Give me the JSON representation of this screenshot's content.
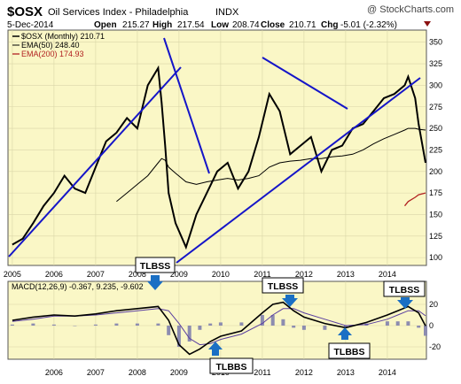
{
  "header": {
    "symbol": "$OSX",
    "name": "Oil Services Index - Philadelphia",
    "exchange": "INDX",
    "watermark": "@ StockCharts.com",
    "date": "5-Dec-2014",
    "open_label": "Open",
    "open": "215.27",
    "high_label": "High",
    "high": "217.54",
    "low_label": "Low",
    "low": "208.74",
    "close_label": "Close",
    "close": "210.71",
    "chg_label": "Chg",
    "chg": "-5.01 (-2.32%)"
  },
  "colors": {
    "panel_bg": "#faf7c6",
    "price": "#000000",
    "ema50": "#000000",
    "ema200": "#b22222",
    "trendline": "#1515c8",
    "macd": "#000000",
    "signal": "#5a3fa0",
    "histogram": "#8c8cb0",
    "callout_arrow": "#1a6fc4",
    "grid": "#d9d6a8"
  },
  "legend": {
    "price": "$OSX (Monthly) 210.71",
    "ema50": "EMA(50) 248.40",
    "ema200": "EMA(200) 174.93"
  },
  "macd_label": "MACD(12,26,9) -0.367, 9.235, -9.602",
  "callouts": [
    "TLBSS",
    "TLBBS",
    "TLBSS",
    "TLBBS",
    "TLBSS"
  ],
  "chart_data": [
    {
      "type": "line",
      "title": "$OSX Oil Services Index - Philadelphia (Monthly)",
      "x_axis_labels": [
        "2005",
        "2006",
        "2007",
        "2008",
        "2009",
        "2010",
        "2011",
        "2012",
        "2013",
        "2014"
      ],
      "y_ticks": [
        100,
        125,
        150,
        175,
        200,
        225,
        250,
        275,
        300,
        325,
        350
      ],
      "ylim": [
        95,
        360
      ],
      "x": [
        "2005-01",
        "2005-04",
        "2005-07",
        "2005-10",
        "2006-01",
        "2006-04",
        "2006-07",
        "2006-10",
        "2007-01",
        "2007-04",
        "2007-07",
        "2007-10",
        "2008-01",
        "2008-04",
        "2008-07",
        "2008-08",
        "2008-09",
        "2008-10",
        "2008-12",
        "2009-03",
        "2009-06",
        "2009-09",
        "2009-12",
        "2010-03",
        "2010-06",
        "2010-09",
        "2010-12",
        "2011-03",
        "2011-06",
        "2011-09",
        "2011-12",
        "2012-03",
        "2012-06",
        "2012-09",
        "2012-12",
        "2013-03",
        "2013-06",
        "2013-09",
        "2013-12",
        "2014-03",
        "2014-06",
        "2014-07",
        "2014-09",
        "2014-10",
        "2014-12"
      ],
      "series": [
        {
          "name": "$OSX (Monthly)",
          "values": [
            115,
            122,
            140,
            160,
            175,
            195,
            180,
            175,
            205,
            235,
            245,
            262,
            250,
            300,
            320,
            280,
            230,
            175,
            140,
            112,
            150,
            175,
            200,
            210,
            180,
            200,
            240,
            290,
            270,
            220,
            230,
            240,
            200,
            225,
            230,
            250,
            255,
            270,
            285,
            290,
            300,
            310,
            285,
            255,
            210
          ]
        },
        {
          "name": "EMA(50)",
          "values": [
            null,
            null,
            null,
            null,
            null,
            null,
            null,
            null,
            null,
            null,
            165,
            175,
            185,
            195,
            210,
            215,
            213,
            205,
            198,
            188,
            185,
            188,
            190,
            192,
            190,
            192,
            195,
            205,
            210,
            212,
            213,
            215,
            215,
            217,
            218,
            220,
            225,
            232,
            238,
            243,
            248,
            250,
            250,
            249,
            248
          ]
        },
        {
          "name": "EMA(200)",
          "values": [
            null,
            null,
            null,
            null,
            null,
            null,
            null,
            null,
            null,
            null,
            null,
            null,
            null,
            null,
            null,
            null,
            null,
            null,
            null,
            null,
            null,
            null,
            null,
            null,
            null,
            null,
            null,
            null,
            null,
            null,
            null,
            null,
            null,
            null,
            null,
            null,
            null,
            null,
            null,
            null,
            160,
            165,
            170,
            173,
            175
          ]
        }
      ]
    },
    {
      "type": "line",
      "title": "MACD(12,26,9)",
      "x_axis_labels": [
        "2006",
        "2007",
        "2008",
        "2009",
        "2010",
        "2011",
        "2012",
        "2013",
        "2014"
      ],
      "y_ticks": [
        -20,
        0,
        20
      ],
      "ylim": [
        -30,
        30
      ],
      "x": [
        "2005-01",
        "2005-07",
        "2006-01",
        "2006-07",
        "2007-01",
        "2007-07",
        "2008-01",
        "2008-07",
        "2008-10",
        "2009-01",
        "2009-04",
        "2009-07",
        "2009-10",
        "2010-01",
        "2010-07",
        "2011-01",
        "2011-04",
        "2011-07",
        "2011-10",
        "2012-01",
        "2012-07",
        "2013-01",
        "2013-07",
        "2014-01",
        "2014-04",
        "2014-07",
        "2014-10",
        "2014-12"
      ],
      "series": [
        {
          "name": "MACD",
          "values": [
            5,
            8,
            10,
            9,
            11,
            14,
            16,
            18,
            5,
            -18,
            -27,
            -22,
            -15,
            -10,
            -5,
            12,
            20,
            22,
            14,
            8,
            2,
            -2,
            3,
            10,
            14,
            18,
            12,
            -0.367
          ]
        },
        {
          "name": "Signal",
          "values": [
            4,
            6,
            9,
            9,
            10,
            12,
            14,
            16,
            14,
            2,
            -12,
            -18,
            -17,
            -13,
            -8,
            2,
            10,
            16,
            16,
            12,
            6,
            0,
            1,
            6,
            10,
            14,
            14,
            9.235
          ]
        },
        {
          "name": "Histogram",
          "values": [
            1,
            2,
            1,
            0,
            1,
            2,
            2,
            2,
            -9,
            -20,
            -15,
            -4,
            2,
            3,
            3,
            10,
            10,
            6,
            -2,
            -4,
            -4,
            -2,
            2,
            4,
            4,
            4,
            -2,
            -9.602
          ]
        }
      ]
    }
  ]
}
